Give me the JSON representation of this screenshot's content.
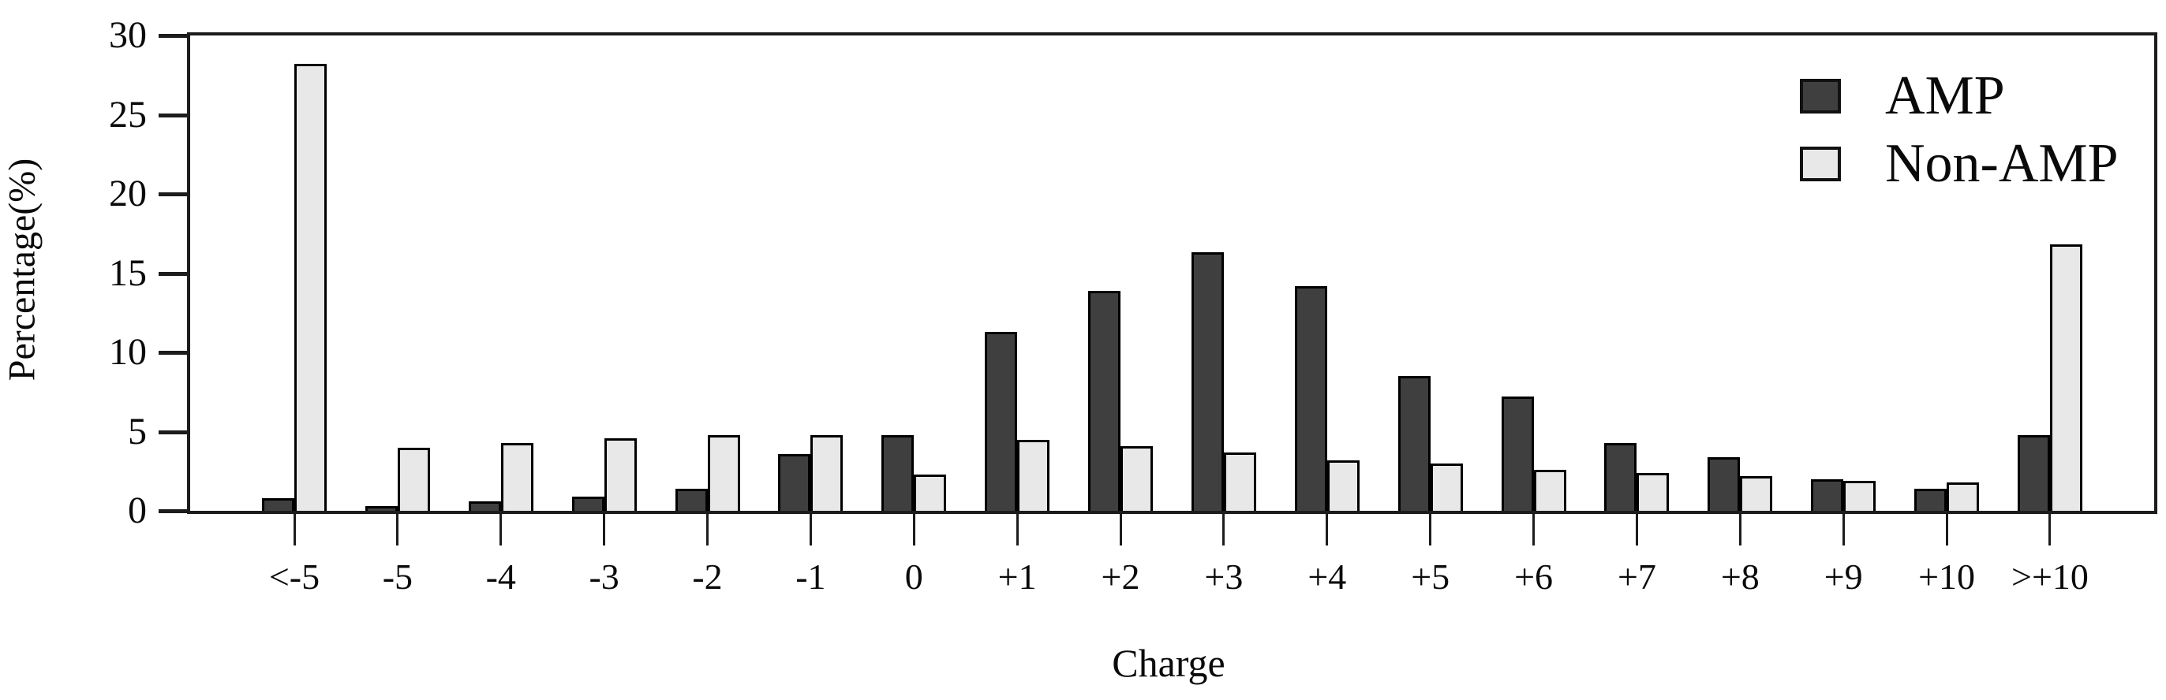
{
  "chart_data": {
    "type": "bar",
    "title": "",
    "xlabel": "Charge",
    "ylabel": "Percentage(%)",
    "ylim": [
      0,
      30
    ],
    "y_ticks": [
      0,
      5,
      10,
      15,
      20,
      25,
      30
    ],
    "grid": false,
    "legend_position": "top-right",
    "categories": [
      "<-5",
      "-5",
      "-4",
      "-3",
      "-2",
      "-1",
      "0",
      "+1",
      "+2",
      "+3",
      "+4",
      "+5",
      "+6",
      "+7",
      "+8",
      "+9",
      "+10",
      ">+10"
    ],
    "series": [
      {
        "name": "AMP",
        "color": "#3f3f3f",
        "values": [
          0.8,
          0.3,
          0.6,
          0.9,
          1.4,
          3.6,
          4.8,
          11.3,
          13.9,
          16.3,
          14.2,
          8.5,
          7.2,
          4.3,
          3.4,
          2.0,
          1.4,
          4.8
        ]
      },
      {
        "name": "Non-AMP",
        "color": "#e8e8e8",
        "values": [
          28.2,
          4.0,
          4.3,
          4.6,
          4.8,
          4.8,
          2.3,
          4.5,
          4.1,
          3.7,
          3.2,
          3.0,
          2.6,
          2.4,
          2.2,
          1.9,
          1.8,
          16.8
        ]
      }
    ],
    "bar_outline_color": "#000000",
    "axis_color": "#1c1c1c"
  }
}
